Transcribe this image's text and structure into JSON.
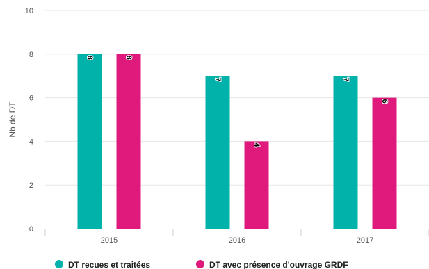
{
  "chart_data": {
    "type": "bar",
    "categories": [
      "2015",
      "2016",
      "2017"
    ],
    "series": [
      {
        "name": "DT recues et traitées",
        "values": [
          8,
          7,
          7
        ],
        "color": "#00b2a9"
      },
      {
        "name": "DT avec présence d'ouvrage GRDF",
        "values": [
          8,
          4,
          6
        ],
        "color": "#e0197d"
      }
    ],
    "xlabel": "",
    "ylabel": "Nb de DT",
    "ylim": [
      0,
      10
    ],
    "yticks": [
      0,
      2,
      4,
      6,
      8,
      10
    ],
    "grid": true,
    "legend": "bottom-left",
    "data_labels": true
  }
}
